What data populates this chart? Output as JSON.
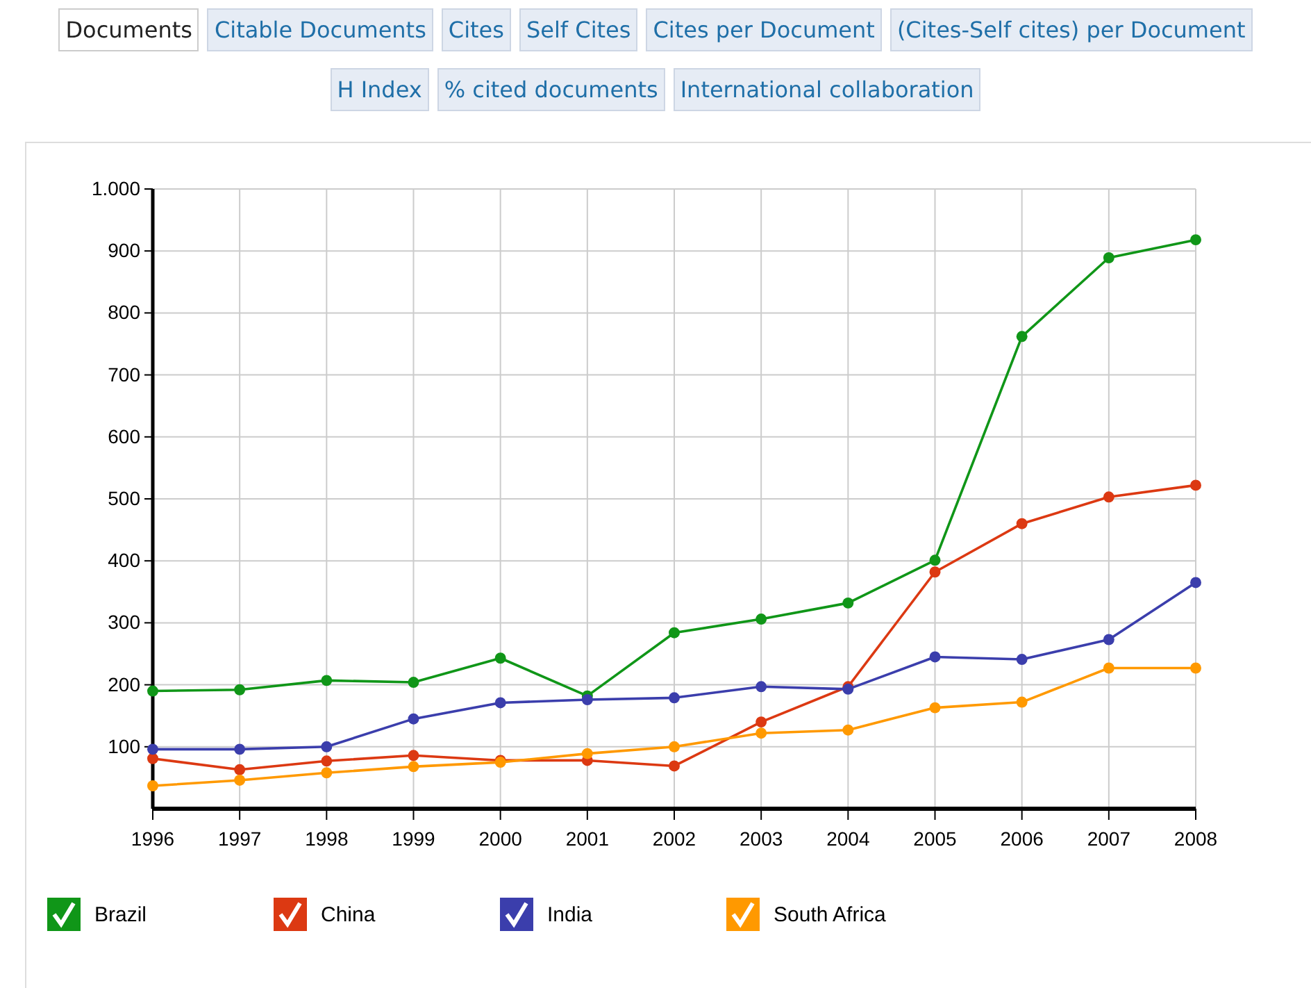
{
  "chart_data": [
    {
      "type": "other",
      "annotations": [
        "Documents",
        "Citable Documents",
        "Cites",
        "Self Cites",
        "Cites per Document",
        "(Cites-Self cites) per Document",
        "H Index",
        "% cited documents",
        "International collaboration"
      ]
    },
    {
      "type": "line",
      "categories": [
        "1996",
        "1997",
        "1998",
        "1999",
        "2000",
        "2001",
        "2002",
        "2003",
        "2004",
        "2005",
        "2006",
        "2007",
        "2008"
      ],
      "series": [
        {
          "name": "Brazil",
          "color": "#109618",
          "values": [
            190,
            192,
            207,
            204,
            243,
            182,
            284,
            306,
            332,
            401,
            762,
            889,
            918
          ]
        },
        {
          "name": "China",
          "color": "#dc3912",
          "values": [
            81,
            63,
            77,
            86,
            78,
            78,
            69,
            140,
            197,
            382,
            460,
            503,
            522
          ]
        },
        {
          "name": "India",
          "color": "#3b3eac",
          "values": [
            96,
            96,
            100,
            145,
            171,
            176,
            179,
            197,
            193,
            245,
            241,
            273,
            365
          ]
        },
        {
          "name": "South Africa",
          "color": "#ff9900",
          "values": [
            37,
            46,
            58,
            68,
            75,
            89,
            100,
            122,
            127,
            163,
            172,
            227,
            227
          ]
        }
      ],
      "ylim": [
        0,
        1000
      ],
      "yticks": [
        100,
        200,
        300,
        400,
        500,
        600,
        700,
        800,
        900,
        {
          "value": 1000,
          "label": "1.000"
        }
      ],
      "grid": true,
      "legend": "bottom",
      "marker": "circle"
    }
  ]
}
